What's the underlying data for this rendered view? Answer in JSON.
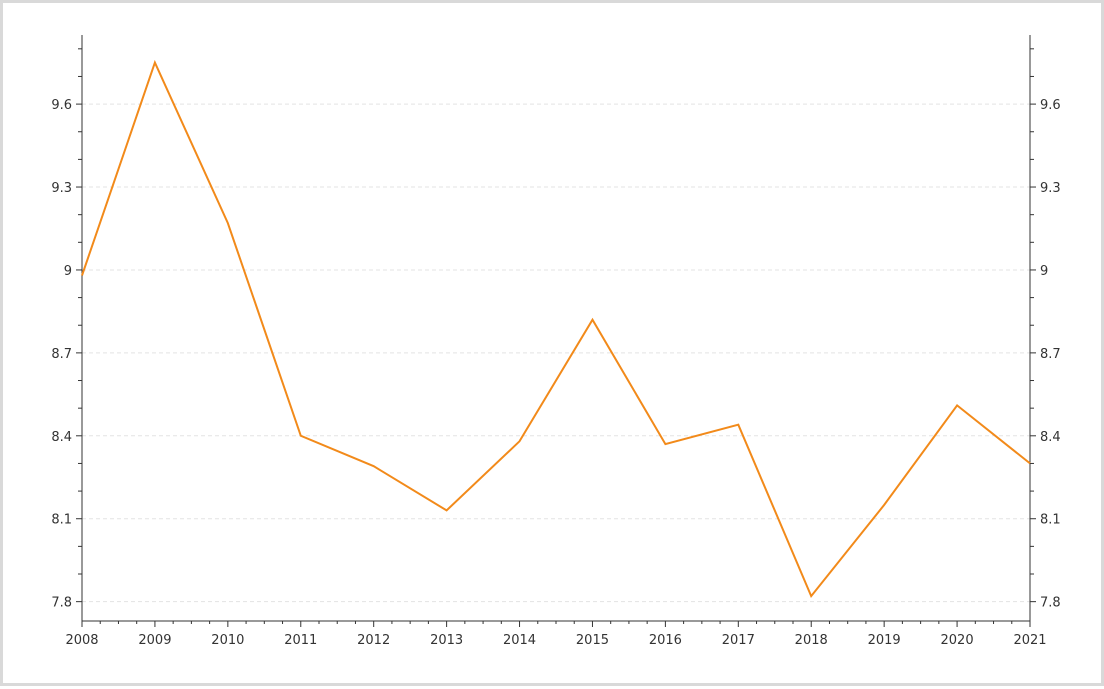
{
  "chart_data": {
    "type": "line",
    "title": "",
    "xlabel": "",
    "ylabel": "",
    "x": [
      2008,
      2009,
      2010,
      2011,
      2012,
      2013,
      2014,
      2015,
      2016,
      2017,
      2018,
      2019,
      2020,
      2021
    ],
    "x_tick_labels": [
      "2008",
      "2009",
      "2010",
      "2011",
      "2012",
      "2013",
      "2014",
      "2015",
      "2016",
      "2017",
      "2018",
      "2019",
      "2020",
      "2021"
    ],
    "y_ticks": [
      7.8,
      8.1,
      8.4,
      8.7,
      9,
      9.3,
      9.6
    ],
    "y_tick_labels": [
      "7.8",
      "8.1",
      "8.4",
      "8.7",
      "9",
      "9.3",
      "9.6"
    ],
    "ylim": [
      7.73,
      9.85
    ],
    "xlim": [
      2008,
      2021
    ],
    "grid": "horizontal dashed",
    "secondary_y_axis": "mirrored on right",
    "series": [
      {
        "color": "#f28a1a",
        "values": [
          8.98,
          9.75,
          9.17,
          8.4,
          8.29,
          8.13,
          8.38,
          8.82,
          8.37,
          8.44,
          7.82,
          8.15,
          8.51,
          8.3
        ]
      }
    ]
  }
}
